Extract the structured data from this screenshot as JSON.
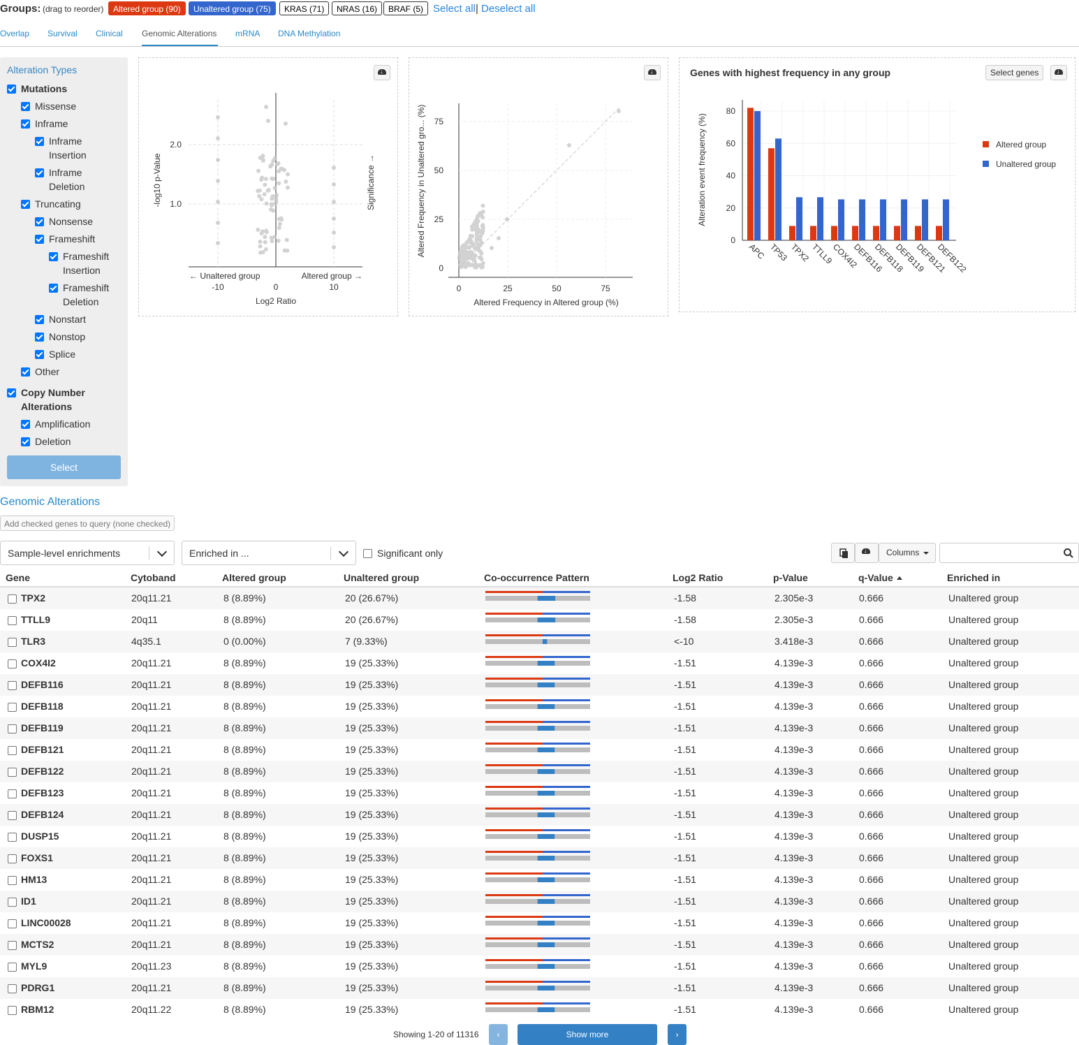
{
  "groups": {
    "label": "Groups:",
    "hint": "(drag to reorder)",
    "buttons": [
      "Altered group (90)",
      "Unaltered group (75)",
      "KRAS (71)",
      "NRAS (16)",
      "BRAF (5)"
    ],
    "select_all": "Select all",
    "separator": "|",
    "deselect_all": "Deselect all"
  },
  "tabs": [
    "Overlap",
    "Survival",
    "Clinical",
    "Genomic Alterations",
    "mRNA",
    "DNA Methylation"
  ],
  "active_tab": "Genomic Alterations",
  "sidebar": {
    "title": "Alteration Types",
    "items": [
      "Mutations",
      "Missense",
      "Inframe",
      "Inframe",
      "Insertion",
      "Inframe",
      "Deletion",
      "Truncating",
      "Nonsense",
      "Frameshift",
      "Frameshift",
      "Insertion",
      "Frameshift",
      "Deletion",
      "Nonstart",
      "Nonstop",
      "Splice",
      "Other",
      "Copy Number",
      "Alterations",
      "Amplification",
      "Deletion"
    ],
    "select_label": "Select"
  },
  "volcano": {
    "ylabel": "-log10 p-Value",
    "xlabel": "Log2 Ratio",
    "right_label": "Significance →",
    "left_arrow": "← Unaltered group",
    "right_arrow": "Altered group →",
    "xticks": [
      "-10",
      "0",
      "10"
    ],
    "yticks": [
      "2.0",
      "1.0"
    ]
  },
  "scatter": {
    "xlabel": "Altered Frequency in Altered group (%)",
    "ylabel": "Altered Frequency in Unaltered gro... (%)",
    "ticks": [
      "0",
      "25",
      "50",
      "75"
    ]
  },
  "barchart": {
    "title": "Genes with highest frequency in any group",
    "select_genes": "Select genes",
    "ylabel": "Alteration event frequency (%)",
    "yticks": [
      "0",
      "20",
      "40",
      "60",
      "80"
    ],
    "legend": [
      "Altered group",
      "Unaltered group"
    ]
  },
  "chart_data": {
    "type": "bar",
    "title": "Genes with highest frequency in any group",
    "ylabel": "Alteration event frequency (%)",
    "ylim": [
      0,
      85
    ],
    "categories": [
      "APC",
      "TP53",
      "TPX2",
      "TTLL9",
      "COX4I2",
      "DEFB116",
      "DEFB118",
      "DEFB119",
      "DEFB121",
      "DEFB122"
    ],
    "series": [
      {
        "name": "Altered group",
        "color": "#dc3912",
        "values": [
          82,
          57,
          8.89,
          8.89,
          8.89,
          8.89,
          8.89,
          8.89,
          8.89,
          8.89
        ]
      },
      {
        "name": "Unaltered group",
        "color": "#3366cc",
        "values": [
          80,
          63,
          26.67,
          26.67,
          25.33,
          25.33,
          25.33,
          25.33,
          25.33,
          25.33
        ]
      }
    ],
    "legend": "right"
  },
  "section": {
    "title": "Genomic Alterations",
    "add_query": "Add checked genes to query (none checked)",
    "enrichment_select": "Sample-level enrichments",
    "enriched_in_select": "Enriched in ...",
    "significant_only": "Significant only",
    "columns_button": "Columns"
  },
  "table": {
    "headers": [
      "Gene",
      "Cytoband",
      "Altered group",
      "Unaltered group",
      "Co-occurrence Pattern",
      "Log2 Ratio",
      "p-Value",
      "q-Value",
      "Enriched in"
    ],
    "rows": [
      [
        "TPX2",
        "20q11.21",
        "8 (8.89%)",
        "20 (26.67%)",
        "-1.58",
        "2.305e-3",
        "0.666",
        "Unaltered group"
      ],
      [
        "TTLL9",
        "20q11",
        "8 (8.89%)",
        "20 (26.67%)",
        "-1.58",
        "2.305e-3",
        "0.666",
        "Unaltered group"
      ],
      [
        "TLR3",
        "4q35.1",
        "0 (0.00%)",
        "7 (9.33%)",
        "<-10",
        "3.418e-3",
        "0.666",
        "Unaltered group"
      ],
      [
        "COX4I2",
        "20q11.21",
        "8 (8.89%)",
        "19 (25.33%)",
        "-1.51",
        "4.139e-3",
        "0.666",
        "Unaltered group"
      ],
      [
        "DEFB116",
        "20q11.21",
        "8 (8.89%)",
        "19 (25.33%)",
        "-1.51",
        "4.139e-3",
        "0.666",
        "Unaltered group"
      ],
      [
        "DEFB118",
        "20q11.21",
        "8 (8.89%)",
        "19 (25.33%)",
        "-1.51",
        "4.139e-3",
        "0.666",
        "Unaltered group"
      ],
      [
        "DEFB119",
        "20q11.21",
        "8 (8.89%)",
        "19 (25.33%)",
        "-1.51",
        "4.139e-3",
        "0.666",
        "Unaltered group"
      ],
      [
        "DEFB121",
        "20q11.21",
        "8 (8.89%)",
        "19 (25.33%)",
        "-1.51",
        "4.139e-3",
        "0.666",
        "Unaltered group"
      ],
      [
        "DEFB122",
        "20q11.21",
        "8 (8.89%)",
        "19 (25.33%)",
        "-1.51",
        "4.139e-3",
        "0.666",
        "Unaltered group"
      ],
      [
        "DEFB123",
        "20q11.21",
        "8 (8.89%)",
        "19 (25.33%)",
        "-1.51",
        "4.139e-3",
        "0.666",
        "Unaltered group"
      ],
      [
        "DEFB124",
        "20q11.21",
        "8 (8.89%)",
        "19 (25.33%)",
        "-1.51",
        "4.139e-3",
        "0.666",
        "Unaltered group"
      ],
      [
        "DUSP15",
        "20q11.21",
        "8 (8.89%)",
        "19 (25.33%)",
        "-1.51",
        "4.139e-3",
        "0.666",
        "Unaltered group"
      ],
      [
        "FOXS1",
        "20q11.21",
        "8 (8.89%)",
        "19 (25.33%)",
        "-1.51",
        "4.139e-3",
        "0.666",
        "Unaltered group"
      ],
      [
        "HM13",
        "20q11.21",
        "8 (8.89%)",
        "19 (25.33%)",
        "-1.51",
        "4.139e-3",
        "0.666",
        "Unaltered group"
      ],
      [
        "ID1",
        "20q11.21",
        "8 (8.89%)",
        "19 (25.33%)",
        "-1.51",
        "4.139e-3",
        "0.666",
        "Unaltered group"
      ],
      [
        "LINC00028",
        "20q11.21",
        "8 (8.89%)",
        "19 (25.33%)",
        "-1.51",
        "4.139e-3",
        "0.666",
        "Unaltered group"
      ],
      [
        "MCTS2",
        "20q11.21",
        "8 (8.89%)",
        "19 (25.33%)",
        "-1.51",
        "4.139e-3",
        "0.666",
        "Unaltered group"
      ],
      [
        "MYL9",
        "20q11.23",
        "8 (8.89%)",
        "19 (25.33%)",
        "-1.51",
        "4.139e-3",
        "0.666",
        "Unaltered group"
      ],
      [
        "PDRG1",
        "20q11.21",
        "8 (8.89%)",
        "19 (25.33%)",
        "-1.51",
        "4.139e-3",
        "0.666",
        "Unaltered group"
      ],
      [
        "RBM12",
        "20q11.22",
        "8 (8.89%)",
        "19 (25.33%)",
        "-1.51",
        "4.139e-3",
        "0.666",
        "Unaltered group"
      ]
    ]
  },
  "footer": {
    "showing": "Showing 1-20 of 11316",
    "prev": "‹",
    "show_more": "Show more",
    "next": "›"
  },
  "colors": {
    "altered": "#dc3912",
    "unaltered": "#3366cc",
    "link": "#2a88c7"
  }
}
